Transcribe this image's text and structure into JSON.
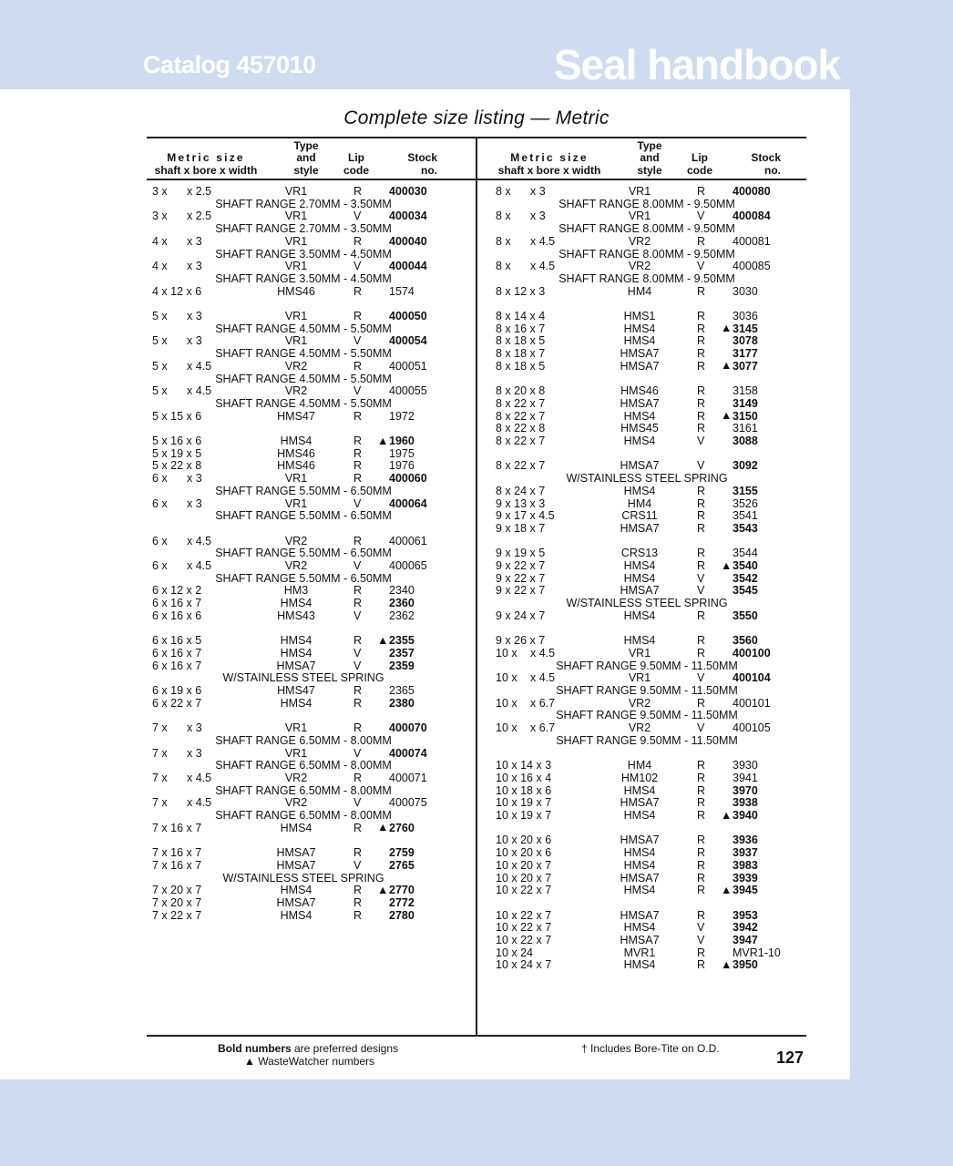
{
  "header": {
    "catalog": "Catalog 457010",
    "brand": "Seal handbook",
    "title": "Complete size listing — Metric"
  },
  "colors": {
    "band": "#cfdcef"
  },
  "columns": {
    "size_top": "Metric size",
    "size_bottom": "shaft x bore x width",
    "type_1": "Type",
    "type_2": "and",
    "type_3": "style",
    "lip_1": "Lip",
    "lip_2": "code",
    "stock_1": "Stock",
    "stock_2": "no."
  },
  "left_rows": [
    {
      "s": "3 x",
      "w": "x 2.5",
      "t": "VR1",
      "l": "R",
      "n": "400030",
      "b": true
    },
    {
      "note": "SHAFT RANGE 2.70MM - 3.50MM"
    },
    {
      "s": "3 x",
      "w": "x 2.5",
      "t": "VR1",
      "l": "V",
      "n": "400034",
      "b": true
    },
    {
      "note": "SHAFT RANGE 2.70MM - 3.50MM"
    },
    {
      "s": "4 x",
      "w": "x 3",
      "t": "VR1",
      "l": "R",
      "n": "400040",
      "b": true
    },
    {
      "note": "SHAFT RANGE 3.50MM - 4.50MM"
    },
    {
      "s": "4 x",
      "w": "x 3",
      "t": "VR1",
      "l": "V",
      "n": "400044",
      "b": true
    },
    {
      "note": "SHAFT RANGE 3.50MM - 4.50MM"
    },
    {
      "s": "4 x 12 x 6",
      "t": "HMS46",
      "l": "R",
      "n": "1574"
    },
    {},
    {
      "s": "5 x",
      "w": "x 3",
      "t": "VR1",
      "l": "R",
      "n": "400050",
      "b": true
    },
    {
      "note": "SHAFT RANGE 4.50MM - 5.50MM"
    },
    {
      "s": "5 x",
      "w": "x 3",
      "t": "VR1",
      "l": "V",
      "n": "400054",
      "b": true
    },
    {
      "note": "SHAFT RANGE 4.50MM - 5.50MM"
    },
    {
      "s": "5 x",
      "w": "x 4.5",
      "t": "VR2",
      "l": "R",
      "n": "400051"
    },
    {
      "note": "SHAFT RANGE 4.50MM - 5.50MM"
    },
    {
      "s": "5 x",
      "w": "x 4.5",
      "t": "VR2",
      "l": "V",
      "n": "400055"
    },
    {
      "note": "SHAFT RANGE 4.50MM - 5.50MM"
    },
    {
      "s": "5 x 15 x 6",
      "t": "HMS47",
      "l": "R",
      "n": "1972"
    },
    {},
    {
      "s": "5 x 16 x 6",
      "t": "HMS4",
      "l": "R",
      "n": "1960",
      "b": true,
      "ww": true
    },
    {
      "s": "5 x 19 x 5",
      "t": "HMS46",
      "l": "R",
      "n": "1975"
    },
    {
      "s": "5 x 22 x 8",
      "t": "HMS46",
      "l": "R",
      "n": "1976"
    },
    {
      "s": "6 x",
      "w": "x 3",
      "t": "VR1",
      "l": "R",
      "n": "400060",
      "b": true
    },
    {
      "note": "SHAFT RANGE 5.50MM - 6.50MM"
    },
    {
      "s": "6 x",
      "w": "x 3",
      "t": "VR1",
      "l": "V",
      "n": "400064",
      "b": true
    },
    {
      "note": "SHAFT RANGE 5.50MM - 6.50MM"
    },
    {},
    {
      "s": "6 x",
      "w": "x 4.5",
      "t": "VR2",
      "l": "R",
      "n": "400061"
    },
    {
      "note": "SHAFT RANGE 5.50MM - 6.50MM"
    },
    {
      "s": "6 x",
      "w": "x 4.5",
      "t": "VR2",
      "l": "V",
      "n": "400065"
    },
    {
      "note": "SHAFT RANGE 5.50MM - 6.50MM"
    },
    {
      "s": "6 x 12 x 2",
      "t": "HM3",
      "l": "R",
      "n": "2340"
    },
    {
      "s": "6 x 16 x 7",
      "t": "HMS4",
      "l": "R",
      "n": "2360",
      "b": true
    },
    {
      "s": "6 x 16 x 6",
      "t": "HMS43",
      "l": "V",
      "n": "2362"
    },
    {},
    {
      "s": "6 x 16 x 5",
      "t": "HMS4",
      "l": "R",
      "n": "2355",
      "b": true,
      "ww": true
    },
    {
      "s": "6 x 16 x 7",
      "t": "HMS4",
      "l": "V",
      "n": "2357",
      "b": true
    },
    {
      "s": "6 x 16 x 7",
      "t": "HMSA7",
      "l": "V",
      "n": "2359",
      "b": true
    },
    {
      "note": "W/STAINLESS STEEL SPRING"
    },
    {
      "s": "6 x 19 x 6",
      "t": "HMS47",
      "l": "R",
      "n": "2365"
    },
    {
      "s": "6 x 22 x 7",
      "t": "HMS4",
      "l": "R",
      "n": "2380",
      "b": true
    },
    {},
    {
      "s": "7 x",
      "w": "x 3",
      "t": "VR1",
      "l": "R",
      "n": "400070",
      "b": true
    },
    {
      "note": "SHAFT RANGE 6.50MM - 8.00MM"
    },
    {
      "s": "7 x",
      "w": "x 3",
      "t": "VR1",
      "l": "V",
      "n": "400074",
      "b": true
    },
    {
      "note": "SHAFT RANGE 6.50MM - 8.00MM"
    },
    {
      "s": "7 x",
      "w": "x 4.5",
      "t": "VR2",
      "l": "R",
      "n": "400071"
    },
    {
      "note": "SHAFT RANGE 6.50MM - 8.00MM"
    },
    {
      "s": "7 x",
      "w": "x 4.5",
      "t": "VR2",
      "l": "V",
      "n": "400075"
    },
    {
      "note": "SHAFT RANGE 6.50MM - 8.00MM"
    },
    {
      "s": "7 x 16 x 7",
      "t": "HMS4",
      "l": "R",
      "n": "2760",
      "b": true,
      "ww": true
    },
    {},
    {
      "s": "7 x 16 x 7",
      "t": "HMSA7",
      "l": "R",
      "n": "2759",
      "b": true
    },
    {
      "s": "7 x 16 x 7",
      "t": "HMSA7",
      "l": "V",
      "n": "2765",
      "b": true
    },
    {
      "note": "W/STAINLESS STEEL SPRING"
    },
    {
      "s": "7 x 20 x 7",
      "t": "HMS4",
      "l": "R",
      "n": "2770",
      "b": true,
      "ww": true
    },
    {
      "s": "7 x 20 x 7",
      "t": "HMSA7",
      "l": "R",
      "n": "2772",
      "b": true
    },
    {
      "s": "7 x 22 x 7",
      "t": "HMS4",
      "l": "R",
      "n": "2780",
      "b": true
    }
  ],
  "right_rows": [
    {
      "s": "8 x",
      "w": "x 3",
      "t": "VR1",
      "l": "R",
      "n": "400080",
      "b": true
    },
    {
      "note": "SHAFT RANGE 8.00MM - 9.50MM"
    },
    {
      "s": "8 x",
      "w": "x 3",
      "t": "VR1",
      "l": "V",
      "n": "400084",
      "b": true
    },
    {
      "note": "SHAFT RANGE 8.00MM - 9.50MM"
    },
    {
      "s": "8 x",
      "w": "x 4.5",
      "t": "VR2",
      "l": "R",
      "n": "400081"
    },
    {
      "note": "SHAFT RANGE 8.00MM - 9.50MM"
    },
    {
      "s": "8 x",
      "w": "x 4.5",
      "t": "VR2",
      "l": "V",
      "n": "400085"
    },
    {
      "note": "SHAFT RANGE 8.00MM - 9.50MM"
    },
    {
      "s": "8 x 12 x 3",
      "t": "HM4",
      "l": "R",
      "n": "3030"
    },
    {},
    {
      "s": "8 x 14 x 4",
      "t": "HMS1",
      "l": "R",
      "n": "3036"
    },
    {
      "s": "8 x 16 x 7",
      "t": "HMS4",
      "l": "R",
      "n": "3145",
      "b": true,
      "ww": true
    },
    {
      "s": "8 x 18 x 5",
      "t": "HMS4",
      "l": "R",
      "n": "3078",
      "b": true
    },
    {
      "s": "8 x 18 x 7",
      "t": "HMSA7",
      "l": "R",
      "n": "3177",
      "b": true
    },
    {
      "s": "8 x 18 x 5",
      "t": "HMSA7",
      "l": "R",
      "n": "3077",
      "b": true,
      "ww": true
    },
    {},
    {
      "s": "8 x 20 x 8",
      "t": "HMS46",
      "l": "R",
      "n": "3158"
    },
    {
      "s": "8 x 22 x 7",
      "t": "HMSA7",
      "l": "R",
      "n": "3149",
      "b": true
    },
    {
      "s": "8 x 22 x 7",
      "t": "HMS4",
      "l": "R",
      "n": "3150",
      "b": true,
      "ww": true
    },
    {
      "s": "8 x 22 x 8",
      "t": "HMS45",
      "l": "R",
      "n": "3161"
    },
    {
      "s": "8 x 22 x 7",
      "t": "HMS4",
      "l": "V",
      "n": "3088",
      "b": true
    },
    {},
    {
      "s": "8 x 22 x 7",
      "t": "HMSA7",
      "l": "V",
      "n": "3092",
      "b": true
    },
    {
      "note": "W/STAINLESS STEEL SPRING"
    },
    {
      "s": "8 x 24 x 7",
      "t": "HMS4",
      "l": "R",
      "n": "3155",
      "b": true
    },
    {
      "s": "9 x 13 x 3",
      "t": "HM4",
      "l": "R",
      "n": "3526"
    },
    {
      "s": "9 x 17 x 4.5",
      "t": "CRS11",
      "l": "R",
      "n": "3541"
    },
    {
      "s": "9 x 18 x 7",
      "t": "HMSA7",
      "l": "R",
      "n": "3543",
      "b": true
    },
    {},
    {
      "s": "9 x 19 x 5",
      "t": "CRS13",
      "l": "R",
      "n": "3544"
    },
    {
      "s": "9 x 22 x 7",
      "t": "HMS4",
      "l": "R",
      "n": "3540",
      "b": true,
      "ww": true
    },
    {
      "s": "9 x 22 x 7",
      "t": "HMS4",
      "l": "V",
      "n": "3542",
      "b": true
    },
    {
      "s": "9 x 22 x 7",
      "t": "HMSA7",
      "l": "V",
      "n": "3545",
      "b": true
    },
    {
      "note": "W/STAINLESS STEEL SPRING"
    },
    {
      "s": "9 x 24 x 7",
      "t": "HMS4",
      "l": "R",
      "n": "3550",
      "b": true
    },
    {},
    {
      "s": "9 x 26 x 7",
      "t": "HMS4",
      "l": "R",
      "n": "3560",
      "b": true
    },
    {
      "s": "10 x",
      "w": "x 4.5",
      "t": "VR1",
      "l": "R",
      "n": "400100",
      "b": true
    },
    {
      "note": "SHAFT RANGE 9.50MM - 11.50MM"
    },
    {
      "s": "10 x",
      "w": "x 4.5",
      "t": "VR1",
      "l": "V",
      "n": "400104",
      "b": true
    },
    {
      "note": "SHAFT RANGE 9.50MM - 11.50MM"
    },
    {
      "s": "10 x",
      "w": "x 6.7",
      "t": "VR2",
      "l": "R",
      "n": "400101"
    },
    {
      "note": "SHAFT RANGE 9.50MM - 11.50MM"
    },
    {
      "s": "10 x",
      "w": "x 6.7",
      "t": "VR2",
      "l": "V",
      "n": "400105"
    },
    {
      "note": "SHAFT RANGE 9.50MM - 11.50MM"
    },
    {},
    {
      "s": "10 x 14 x 3",
      "t": "HM4",
      "l": "R",
      "n": "3930"
    },
    {
      "s": "10 x 16 x 4",
      "t": "HM102",
      "l": "R",
      "n": "3941"
    },
    {
      "s": "10 x 18 x 6",
      "t": "HMS4",
      "l": "R",
      "n": "3970",
      "b": true
    },
    {
      "s": "10 x 19 x 7",
      "t": "HMSA7",
      "l": "R",
      "n": "3938",
      "b": true
    },
    {
      "s": "10 x 19 x 7",
      "t": "HMS4",
      "l": "R",
      "n": "3940",
      "b": true,
      "ww": true
    },
    {},
    {
      "s": "10 x 20 x 6",
      "t": "HMSA7",
      "l": "R",
      "n": "3936",
      "b": true
    },
    {
      "s": "10 x 20 x 6",
      "t": "HMS4",
      "l": "R",
      "n": "3937",
      "b": true
    },
    {
      "s": "10 x 20 x 7",
      "t": "HMS4",
      "l": "R",
      "n": "3983",
      "b": true
    },
    {
      "s": "10 x 20 x 7",
      "t": "HMSA7",
      "l": "R",
      "n": "3939",
      "b": true
    },
    {
      "s": "10 x 22 x 7",
      "t": "HMS4",
      "l": "R",
      "n": "3945",
      "b": true,
      "ww": true
    },
    {},
    {
      "s": "10 x 22 x 7",
      "t": "HMSA7",
      "l": "R",
      "n": "3953",
      "b": true
    },
    {
      "s": "10 x 22 x 7",
      "t": "HMS4",
      "l": "V",
      "n": "3942",
      "b": true
    },
    {
      "s": "10 x 22 x 7",
      "t": "HMSA7",
      "l": "V",
      "n": "3947",
      "b": true
    },
    {
      "s": "10 x 24",
      "t": "MVR1",
      "l": "R",
      "n": "MVR1-10"
    },
    {
      "s": "10 x 24 x 7",
      "t": "HMS4",
      "l": "R",
      "n": "3950",
      "b": true,
      "ww": true
    }
  ],
  "footer": {
    "bold_label": "Bold numbers",
    "bold_rest": " are preferred designs",
    "ww_symbol": "▲",
    "ww_note": "WasteWatcher numbers",
    "dagger_note": "† Includes Bore-Tite on O.D.",
    "page_number": "127"
  }
}
